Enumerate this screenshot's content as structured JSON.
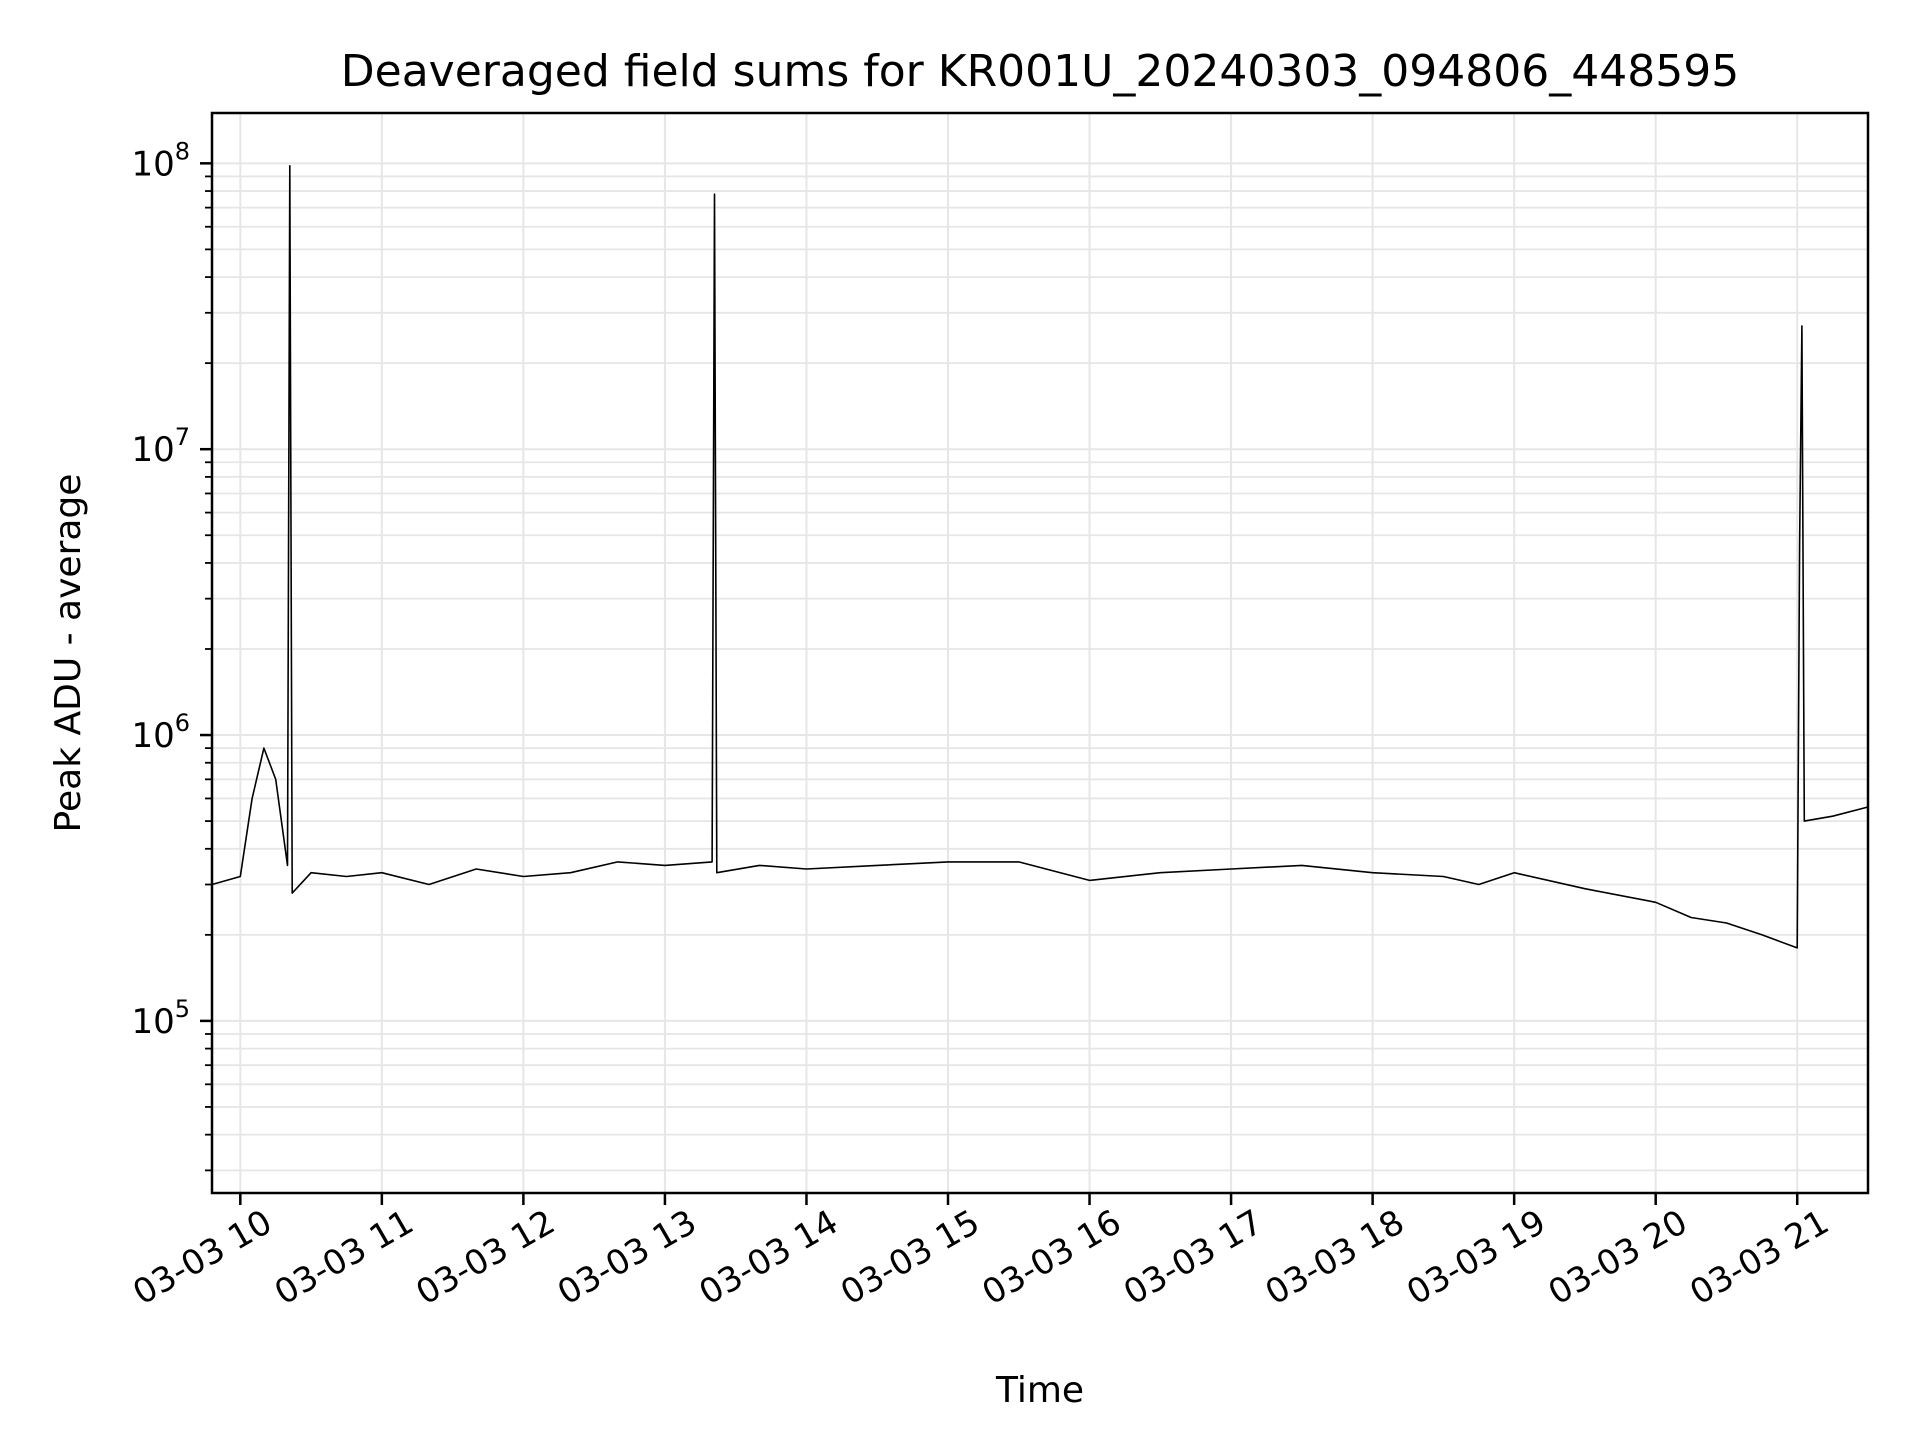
{
  "chart_data": {
    "type": "line",
    "title": "Deaveraged field sums for KR001U_20240303_094806_448595",
    "xlabel": "Time",
    "ylabel": "Peak ADU - average",
    "yscale": "log",
    "ylim": [
      25000,
      150000000
    ],
    "xlim": [
      "2024-03-03 09:48",
      "2024-03-03 21:30"
    ],
    "x_tick_labels": [
      "03-03 10",
      "03-03 11",
      "03-03 12",
      "03-03 13",
      "03-03 14",
      "03-03 15",
      "03-03 16",
      "03-03 17",
      "03-03 18",
      "03-03 19",
      "03-03 20",
      "03-03 21"
    ],
    "x_ticks": [
      "2024-03-03 10:00",
      "2024-03-03 11:00",
      "2024-03-03 12:00",
      "2024-03-03 13:00",
      "2024-03-03 14:00",
      "2024-03-03 15:00",
      "2024-03-03 16:00",
      "2024-03-03 17:00",
      "2024-03-03 18:00",
      "2024-03-03 19:00",
      "2024-03-03 20:00",
      "2024-03-03 21:00"
    ],
    "y_tick_labels": [
      {
        "base": "10",
        "exp": "5",
        "value": 100000
      },
      {
        "base": "10",
        "exp": "6",
        "value": 1000000
      },
      {
        "base": "10",
        "exp": "7",
        "value": 10000000
      },
      {
        "base": "10",
        "exp": "8",
        "value": 100000000
      }
    ],
    "grid": true,
    "line_color": "#000000",
    "grid_color": "#e6e6e6",
    "series": [
      {
        "x": [
          "2024-03-03 09:48",
          "2024-03-03 10:00",
          "2024-03-03 10:05",
          "2024-03-03 10:10",
          "2024-03-03 10:15",
          "2024-03-03 10:20",
          "2024-03-03 10:21",
          "2024-03-03 10:22",
          "2024-03-03 10:30",
          "2024-03-03 10:45",
          "2024-03-03 11:00",
          "2024-03-03 11:20",
          "2024-03-03 11:40",
          "2024-03-03 12:00",
          "2024-03-03 12:20",
          "2024-03-03 12:40",
          "2024-03-03 13:00",
          "2024-03-03 13:20",
          "2024-03-03 13:21",
          "2024-03-03 13:22",
          "2024-03-03 13:40",
          "2024-03-03 14:00",
          "2024-03-03 14:30",
          "2024-03-03 15:00",
          "2024-03-03 15:30",
          "2024-03-03 16:00",
          "2024-03-03 16:30",
          "2024-03-03 17:00",
          "2024-03-03 17:30",
          "2024-03-03 18:00",
          "2024-03-03 18:30",
          "2024-03-03 18:45",
          "2024-03-03 19:00",
          "2024-03-03 19:30",
          "2024-03-03 20:00",
          "2024-03-03 20:15",
          "2024-03-03 20:30",
          "2024-03-03 20:45",
          "2024-03-03 21:00",
          "2024-03-03 21:01",
          "2024-03-03 21:02",
          "2024-03-03 21:03",
          "2024-03-03 21:15",
          "2024-03-03 21:30"
        ],
        "y": [
          300000,
          320000,
          600000,
          900000,
          700000,
          350000,
          98000000,
          280000,
          330000,
          320000,
          330000,
          300000,
          340000,
          320000,
          330000,
          360000,
          350000,
          360000,
          78000000,
          330000,
          350000,
          340000,
          350000,
          360000,
          360000,
          310000,
          330000,
          340000,
          350000,
          330000,
          320000,
          300000,
          330000,
          290000,
          260000,
          230000,
          220000,
          200000,
          180000,
          4600000,
          27000000,
          500000,
          520000,
          560000
        ]
      }
    ]
  }
}
